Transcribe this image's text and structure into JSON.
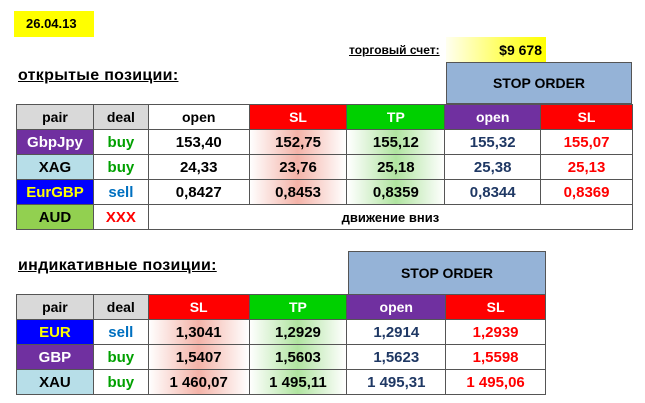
{
  "date": "26.04.13",
  "account": {
    "label": "торговый счет:",
    "value": "$9 678"
  },
  "open_positions": {
    "title": "открытые позиции:",
    "stop_order_header": "STOP ORDER",
    "columns": [
      "pair",
      "deal",
      "open",
      "SL",
      "TP",
      "open",
      "SL"
    ],
    "rows": [
      {
        "pair": "GbpJpy",
        "deal": "buy",
        "open": "153,40",
        "sl": "152,75",
        "tp": "155,12",
        "so_open": "155,32",
        "so_sl": "155,07"
      },
      {
        "pair": "XAG",
        "deal": "buy",
        "open": "24,33",
        "sl": "23,76",
        "tp": "25,18",
        "so_open": "25,38",
        "so_sl": "25,13"
      },
      {
        "pair": "EurGBP",
        "deal": "sell",
        "open": "0,8427",
        "sl": "0,8453",
        "tp": "0,8359",
        "so_open": "0,8344",
        "so_sl": "0,8369"
      },
      {
        "pair": "AUD",
        "deal": "XXX",
        "note": "движение вниз"
      }
    ]
  },
  "indicative_positions": {
    "title": "индикативные позиции:",
    "stop_order_header": "STOP ORDER",
    "columns": [
      "pair",
      "deal",
      "SL",
      "TP",
      "open",
      "SL"
    ],
    "rows": [
      {
        "pair": "EUR",
        "deal": "sell",
        "sl": "1,3041",
        "tp": "1,2929",
        "so_open": "1,2914",
        "so_sl": "1,2939"
      },
      {
        "pair": "GBP",
        "deal": "buy",
        "sl": "1,5407",
        "tp": "1,5603",
        "so_open": "1,5623",
        "so_sl": "1,5598"
      },
      {
        "pair": "XAU",
        "deal": "buy",
        "sl": "1 460,07",
        "tp": "1 495,11",
        "so_open": "1 495,31",
        "so_sl": "1 495,06"
      }
    ]
  }
}
